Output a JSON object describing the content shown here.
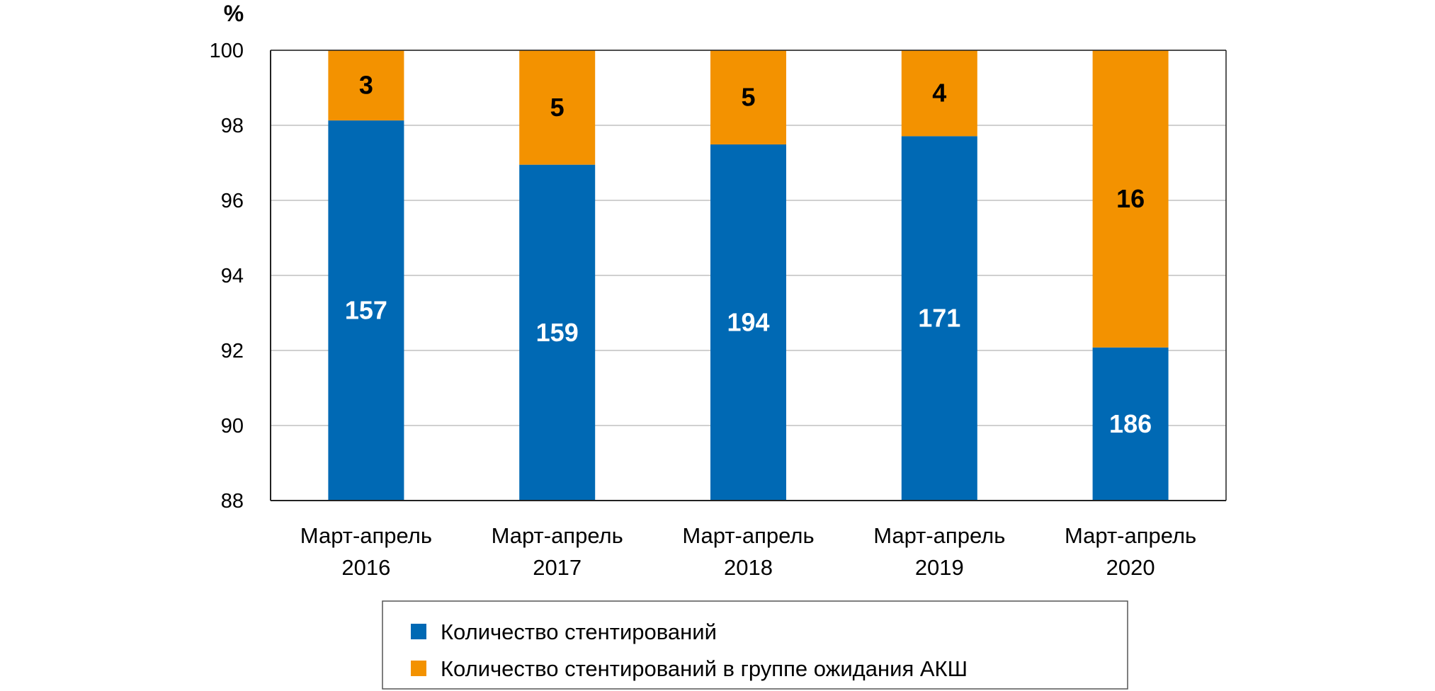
{
  "chart_data": {
    "type": "bar",
    "stacked": true,
    "title": "",
    "ylabel": "%",
    "xlabel": "",
    "ylim": [
      88,
      100
    ],
    "yticks": [
      88,
      90,
      92,
      94,
      96,
      98,
      100
    ],
    "grid": true,
    "categories": [
      [
        "Март-апрель",
        "2016"
      ],
      [
        "Март-апрель",
        "2017"
      ],
      [
        "Март-апрель",
        "2018"
      ],
      [
        "Март-апрель",
        "2019"
      ],
      [
        "Март-апрель",
        "2020"
      ]
    ],
    "series": [
      {
        "name": "Количество стентирований",
        "color": "#0069b4",
        "counts": [
          157,
          159,
          194,
          171,
          186
        ],
        "percent": [
          98.13,
          96.95,
          97.49,
          97.71,
          92.08
        ]
      },
      {
        "name": "Количество стентирований в группе ожидания АКШ",
        "color": "#f39200",
        "counts": [
          3,
          5,
          5,
          4,
          16
        ],
        "percent": [
          1.87,
          3.05,
          2.51,
          2.29,
          7.92
        ]
      }
    ],
    "legend_position": "bottom"
  }
}
